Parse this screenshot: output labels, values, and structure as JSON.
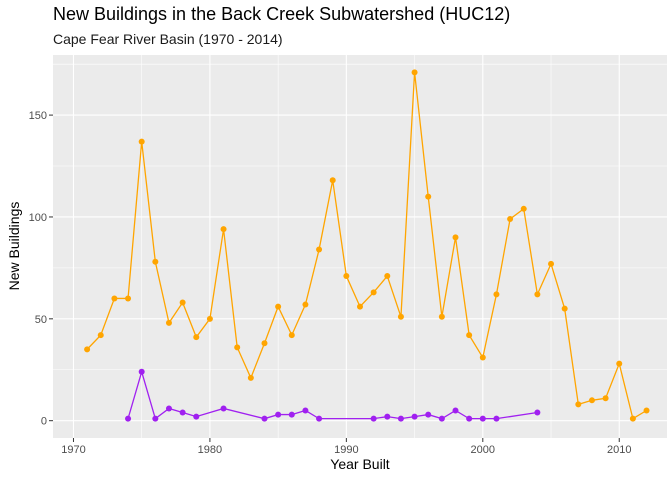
{
  "chart_data": {
    "type": "line",
    "title": "New Buildings in the Back Creek Subwatershed (HUC12)",
    "subtitle": "Cape Fear River Basin (1970 - 2014)",
    "xlabel": "Year Built",
    "ylabel": "New Buildings",
    "xlim": [
      1968.5,
      2013.5
    ],
    "ylim": [
      -8.5,
      179.5
    ],
    "x_ticks": [
      1970,
      1980,
      1990,
      2000,
      2010
    ],
    "y_ticks": [
      0,
      50,
      100,
      150
    ],
    "grid": true,
    "legend": "none",
    "colors": {
      "panel": "#ebebeb",
      "grid": "#ffffff",
      "series_1": "#FFA500",
      "series_2": "#A020F0"
    },
    "series": [
      {
        "color": "#FFA500",
        "x": [
          1971,
          1972,
          1973,
          1974,
          1975,
          1976,
          1977,
          1978,
          1979,
          1980,
          1981,
          1982,
          1983,
          1984,
          1985,
          1986,
          1987,
          1988,
          1989,
          1990,
          1991,
          1992,
          1993,
          1994,
          1995,
          1996,
          1997,
          1998,
          1999,
          2000,
          2001,
          2002,
          2003,
          2004,
          2005,
          2006,
          2007,
          2008,
          2009,
          2010,
          2011,
          2012
        ],
        "y": [
          35,
          42,
          60,
          60,
          137,
          78,
          48,
          58,
          41,
          50,
          94,
          36,
          21,
          38,
          56,
          42,
          57,
          84,
          118,
          71,
          56,
          63,
          71,
          51,
          171,
          110,
          51,
          90,
          42,
          31,
          62,
          99,
          104,
          62,
          77,
          55,
          8,
          10,
          11,
          28,
          1,
          5
        ]
      },
      {
        "color": "#A020F0",
        "x": [
          1974,
          1975,
          1976,
          1977,
          1978,
          1979,
          1981,
          1984,
          1985,
          1986,
          1987,
          1988,
          1992,
          1993,
          1994,
          1995,
          1996,
          1997,
          1998,
          1999,
          2000,
          2001,
          2004
        ],
        "y": [
          1,
          24,
          1,
          6,
          4,
          2,
          6,
          1,
          3,
          3,
          5,
          1,
          1,
          2,
          1,
          2,
          3,
          1,
          5,
          1,
          1,
          1,
          4
        ]
      }
    ]
  }
}
